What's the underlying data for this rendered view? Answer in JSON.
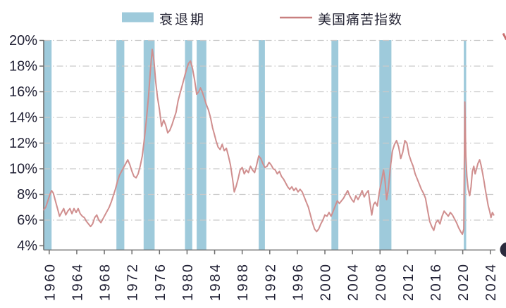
{
  "legend": {
    "recession_label": "衰退期",
    "series_label": "美国痛苦指数"
  },
  "colors": {
    "band": "#9ecadb",
    "line": "#d08f8f",
    "legend_line": "#c87f7f",
    "grid": "#c9c9c9",
    "axis": "#6e6e6e",
    "text": "#1f1f33",
    "artifact": "#2b2b3d"
  },
  "chart_data": {
    "type": "line",
    "title": "",
    "xlabel": "",
    "ylabel": "",
    "grid": "horizontal dashed",
    "legend_position": "top",
    "x_axis": {
      "ticks": [
        1960,
        1964,
        1968,
        1972,
        1976,
        1980,
        1984,
        1988,
        1992,
        1996,
        2000,
        2004,
        2008,
        2012,
        2016,
        2020,
        2024
      ],
      "range": [
        1959.2,
        2025.0
      ]
    },
    "y_axis": {
      "tick_values": [
        20,
        18,
        16,
        14,
        12,
        10,
        8,
        6,
        4
      ],
      "tick_labels": [
        "20%",
        "18%",
        "16%",
        "14%",
        "12%",
        "10%",
        "8%",
        "6%",
        "4%"
      ],
      "range": [
        4,
        20
      ],
      "unit": "%"
    },
    "recession_bands": [
      [
        1959.2,
        1960.35
      ],
      [
        1969.75,
        1970.9
      ],
      [
        1973.7,
        1975.3
      ],
      [
        1979.7,
        1980.75
      ],
      [
        1981.4,
        1982.8
      ],
      [
        1990.4,
        1991.3
      ],
      [
        2000.95,
        2001.95
      ],
      [
        2007.9,
        2009.65
      ],
      [
        2020.15,
        2020.5
      ]
    ],
    "series": [
      {
        "name": "美国痛苦指数",
        "points": [
          [
            1959.2,
            6.8
          ],
          [
            1959.5,
            7.0
          ],
          [
            1959.8,
            7.5
          ],
          [
            1960.1,
            8.0
          ],
          [
            1960.35,
            8.3
          ],
          [
            1960.6,
            8.1
          ],
          [
            1960.9,
            7.5
          ],
          [
            1961.2,
            6.9
          ],
          [
            1961.5,
            6.3
          ],
          [
            1961.8,
            6.6
          ],
          [
            1962.1,
            6.9
          ],
          [
            1962.4,
            6.4
          ],
          [
            1962.7,
            6.7
          ],
          [
            1963.0,
            6.9
          ],
          [
            1963.3,
            6.5
          ],
          [
            1963.6,
            6.9
          ],
          [
            1963.9,
            6.6
          ],
          [
            1964.2,
            6.9
          ],
          [
            1964.5,
            6.5
          ],
          [
            1964.8,
            6.3
          ],
          [
            1965.1,
            6.2
          ],
          [
            1965.4,
            5.9
          ],
          [
            1965.7,
            5.7
          ],
          [
            1966.0,
            5.5
          ],
          [
            1966.3,
            5.7
          ],
          [
            1966.6,
            6.2
          ],
          [
            1966.9,
            6.4
          ],
          [
            1967.2,
            6.0
          ],
          [
            1967.5,
            5.8
          ],
          [
            1967.8,
            6.1
          ],
          [
            1968.1,
            6.4
          ],
          [
            1968.4,
            6.7
          ],
          [
            1968.7,
            7.0
          ],
          [
            1969.0,
            7.4
          ],
          [
            1969.3,
            7.9
          ],
          [
            1969.6,
            8.4
          ],
          [
            1969.9,
            9.0
          ],
          [
            1970.2,
            9.5
          ],
          [
            1970.5,
            9.8
          ],
          [
            1970.8,
            10.1
          ],
          [
            1971.1,
            10.4
          ],
          [
            1971.4,
            10.7
          ],
          [
            1971.7,
            10.3
          ],
          [
            1972.0,
            9.8
          ],
          [
            1972.3,
            9.4
          ],
          [
            1972.6,
            9.3
          ],
          [
            1972.9,
            9.6
          ],
          [
            1973.2,
            10.2
          ],
          [
            1973.5,
            11.0
          ],
          [
            1973.8,
            12.3
          ],
          [
            1974.1,
            13.8
          ],
          [
            1974.4,
            15.6
          ],
          [
            1974.7,
            17.8
          ],
          [
            1974.95,
            19.3
          ],
          [
            1975.2,
            18.4
          ],
          [
            1975.45,
            16.8
          ],
          [
            1975.7,
            15.6
          ],
          [
            1976.0,
            14.6
          ],
          [
            1976.3,
            13.3
          ],
          [
            1976.6,
            13.8
          ],
          [
            1976.9,
            13.4
          ],
          [
            1977.2,
            12.8
          ],
          [
            1977.5,
            13.0
          ],
          [
            1977.8,
            13.4
          ],
          [
            1978.1,
            13.9
          ],
          [
            1978.4,
            14.4
          ],
          [
            1978.7,
            15.3
          ],
          [
            1979.0,
            15.9
          ],
          [
            1979.3,
            16.5
          ],
          [
            1979.6,
            17.1
          ],
          [
            1979.9,
            17.7
          ],
          [
            1980.2,
            18.2
          ],
          [
            1980.5,
            18.4
          ],
          [
            1980.8,
            17.8
          ],
          [
            1981.1,
            16.9
          ],
          [
            1981.4,
            15.8
          ],
          [
            1981.7,
            16.0
          ],
          [
            1981.95,
            16.3
          ],
          [
            1982.2,
            16.0
          ],
          [
            1982.5,
            15.5
          ],
          [
            1982.8,
            15.0
          ],
          [
            1983.1,
            14.6
          ],
          [
            1983.4,
            14.0
          ],
          [
            1983.7,
            13.2
          ],
          [
            1983.95,
            12.7
          ],
          [
            1984.2,
            12.2
          ],
          [
            1984.5,
            11.7
          ],
          [
            1984.8,
            11.5
          ],
          [
            1985.1,
            11.9
          ],
          [
            1985.4,
            11.4
          ],
          [
            1985.7,
            11.6
          ],
          [
            1986.0,
            11.0
          ],
          [
            1986.3,
            10.3
          ],
          [
            1986.6,
            9.2
          ],
          [
            1986.85,
            8.2
          ],
          [
            1987.1,
            8.6
          ],
          [
            1987.4,
            9.2
          ],
          [
            1987.7,
            9.9
          ],
          [
            1988.0,
            10.1
          ],
          [
            1988.3,
            9.6
          ],
          [
            1988.6,
            9.9
          ],
          [
            1988.9,
            9.7
          ],
          [
            1989.2,
            10.2
          ],
          [
            1989.5,
            9.9
          ],
          [
            1989.8,
            9.7
          ],
          [
            1990.1,
            10.3
          ],
          [
            1990.4,
            11.0
          ],
          [
            1990.7,
            10.8
          ],
          [
            1991.0,
            10.4
          ],
          [
            1991.3,
            10.1
          ],
          [
            1991.6,
            10.2
          ],
          [
            1991.9,
            10.5
          ],
          [
            1992.2,
            10.3
          ],
          [
            1992.5,
            10.0
          ],
          [
            1992.8,
            9.9
          ],
          [
            1993.1,
            9.6
          ],
          [
            1993.4,
            9.8
          ],
          [
            1993.7,
            9.4
          ],
          [
            1994.0,
            9.2
          ],
          [
            1994.3,
            8.9
          ],
          [
            1994.6,
            8.6
          ],
          [
            1994.9,
            8.4
          ],
          [
            1995.2,
            8.6
          ],
          [
            1995.5,
            8.3
          ],
          [
            1995.8,
            8.5
          ],
          [
            1996.1,
            8.2
          ],
          [
            1996.4,
            8.4
          ],
          [
            1996.7,
            8.2
          ],
          [
            1997.0,
            7.8
          ],
          [
            1997.3,
            7.4
          ],
          [
            1997.6,
            7.0
          ],
          [
            1997.9,
            6.4
          ],
          [
            1998.2,
            5.8
          ],
          [
            1998.5,
            5.3
          ],
          [
            1998.8,
            5.1
          ],
          [
            1999.1,
            5.3
          ],
          [
            1999.4,
            5.7
          ],
          [
            1999.7,
            6.0
          ],
          [
            2000.0,
            6.4
          ],
          [
            2000.3,
            6.3
          ],
          [
            2000.6,
            6.6
          ],
          [
            2000.9,
            6.3
          ],
          [
            2001.2,
            6.7
          ],
          [
            2001.5,
            7.1
          ],
          [
            2001.8,
            7.5
          ],
          [
            2002.1,
            7.3
          ],
          [
            2002.4,
            7.5
          ],
          [
            2002.7,
            7.7
          ],
          [
            2003.0,
            8.0
          ],
          [
            2003.3,
            8.3
          ],
          [
            2003.6,
            7.9
          ],
          [
            2003.9,
            7.6
          ],
          [
            2004.2,
            7.4
          ],
          [
            2004.5,
            7.9
          ],
          [
            2004.8,
            7.6
          ],
          [
            2005.1,
            7.9
          ],
          [
            2005.4,
            8.3
          ],
          [
            2005.7,
            7.8
          ],
          [
            2006.0,
            8.1
          ],
          [
            2006.3,
            8.3
          ],
          [
            2006.55,
            7.3
          ],
          [
            2006.8,
            6.4
          ],
          [
            2007.05,
            7.2
          ],
          [
            2007.3,
            7.4
          ],
          [
            2007.6,
            7.1
          ],
          [
            2007.9,
            8.2
          ],
          [
            2008.2,
            9.0
          ],
          [
            2008.5,
            9.9
          ],
          [
            2008.7,
            9.2
          ],
          [
            2008.95,
            7.6
          ],
          [
            2009.2,
            8.4
          ],
          [
            2009.5,
            10.1
          ],
          [
            2009.8,
            11.4
          ],
          [
            2010.1,
            11.9
          ],
          [
            2010.4,
            12.2
          ],
          [
            2010.7,
            11.7
          ],
          [
            2011.0,
            10.8
          ],
          [
            2011.3,
            11.3
          ],
          [
            2011.6,
            12.2
          ],
          [
            2011.9,
            12.0
          ],
          [
            2012.2,
            11.1
          ],
          [
            2012.5,
            10.6
          ],
          [
            2012.8,
            10.2
          ],
          [
            2013.1,
            9.6
          ],
          [
            2013.4,
            9.2
          ],
          [
            2013.7,
            8.8
          ],
          [
            2014.0,
            8.4
          ],
          [
            2014.3,
            8.1
          ],
          [
            2014.6,
            7.7
          ],
          [
            2014.9,
            6.8
          ],
          [
            2015.2,
            5.9
          ],
          [
            2015.5,
            5.5
          ],
          [
            2015.8,
            5.2
          ],
          [
            2016.1,
            5.8
          ],
          [
            2016.4,
            6.0
          ],
          [
            2016.7,
            5.7
          ],
          [
            2017.0,
            6.3
          ],
          [
            2017.3,
            6.7
          ],
          [
            2017.6,
            6.5
          ],
          [
            2017.9,
            6.3
          ],
          [
            2018.2,
            6.6
          ],
          [
            2018.5,
            6.4
          ],
          [
            2018.8,
            6.1
          ],
          [
            2019.1,
            5.8
          ],
          [
            2019.4,
            5.4
          ],
          [
            2019.7,
            5.1
          ],
          [
            2019.95,
            4.9
          ],
          [
            2020.15,
            5.3
          ],
          [
            2020.3,
            15.2
          ],
          [
            2020.45,
            11.0
          ],
          [
            2020.6,
            9.4
          ],
          [
            2020.8,
            8.4
          ],
          [
            2021.0,
            7.9
          ],
          [
            2021.2,
            8.6
          ],
          [
            2021.4,
            9.8
          ],
          [
            2021.6,
            10.2
          ],
          [
            2021.8,
            9.6
          ],
          [
            2022.0,
            10.0
          ],
          [
            2022.2,
            10.4
          ],
          [
            2022.45,
            10.7
          ],
          [
            2022.65,
            10.3
          ],
          [
            2022.9,
            9.6
          ],
          [
            2023.1,
            9.0
          ],
          [
            2023.3,
            8.3
          ],
          [
            2023.5,
            7.7
          ],
          [
            2023.7,
            7.1
          ],
          [
            2023.9,
            6.7
          ],
          [
            2024.1,
            6.2
          ],
          [
            2024.3,
            6.6
          ],
          [
            2024.5,
            6.4
          ]
        ]
      }
    ]
  }
}
